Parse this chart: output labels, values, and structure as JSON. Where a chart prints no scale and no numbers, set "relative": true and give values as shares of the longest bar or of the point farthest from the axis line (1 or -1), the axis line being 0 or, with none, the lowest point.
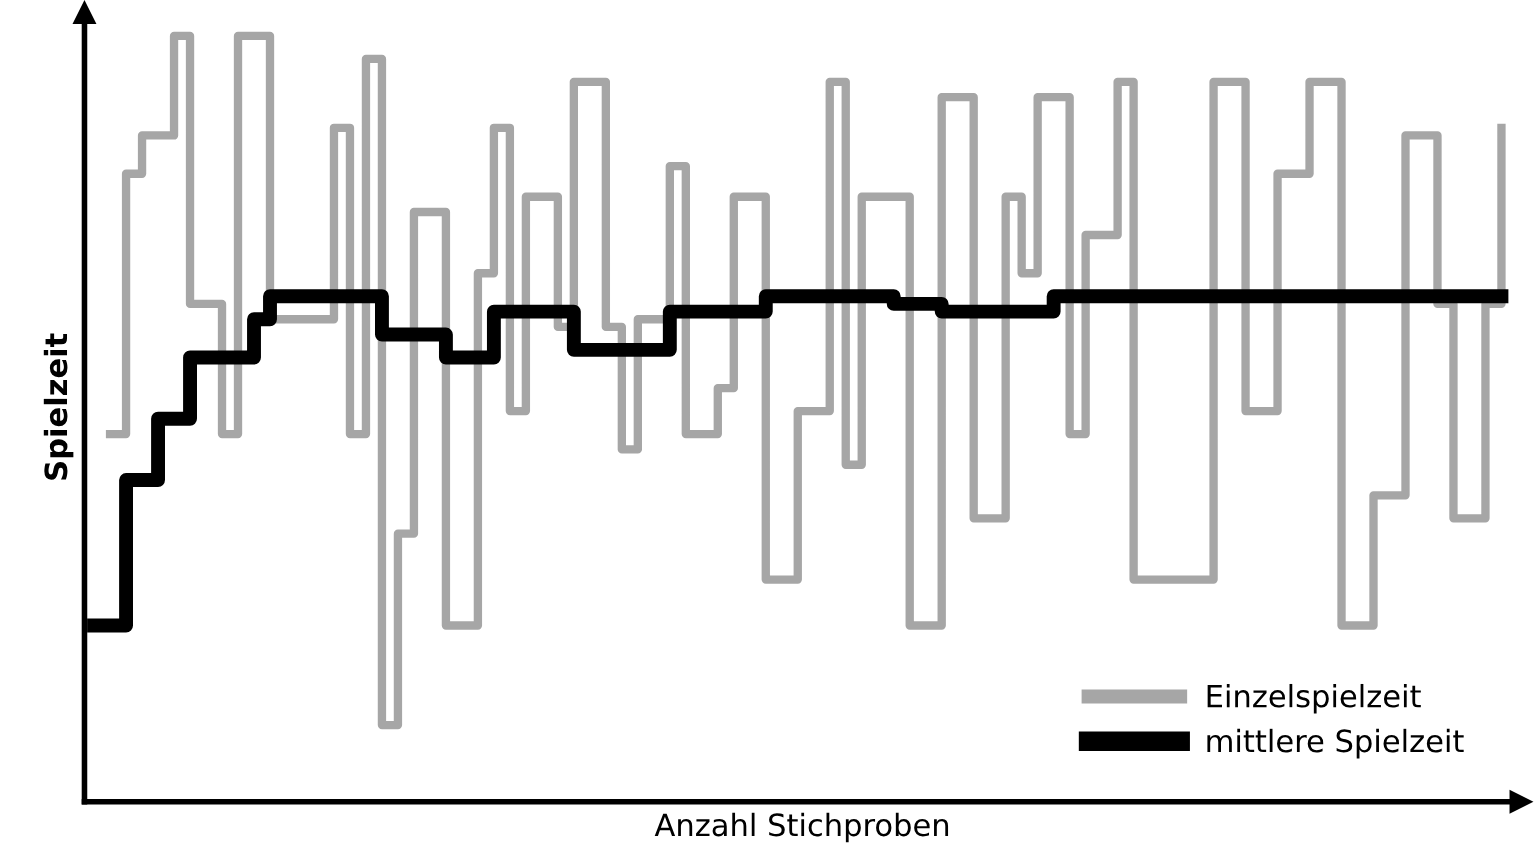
{
  "chart_data": {
    "type": "step",
    "relative": true,
    "xlabel": "Anzahl Stichproben",
    "ylabel": "Spielzeit",
    "legend": "bottom right",
    "marker": "none",
    "line_style": "solid",
    "categories": [
      null,
      null,
      null,
      null,
      null,
      null,
      null,
      null,
      null,
      null,
      null,
      null,
      null,
      null,
      null,
      null,
      null,
      null,
      null,
      null,
      null,
      null,
      null,
      null,
      null,
      null,
      null,
      null,
      null,
      null,
      null,
      null,
      null,
      null,
      null,
      null,
      null,
      null,
      null,
      null,
      null,
      null,
      null,
      null,
      null,
      null,
      null,
      null,
      null,
      null,
      null,
      null,
      null,
      null,
      null,
      null,
      null,
      null,
      null,
      null,
      null,
      null,
      null,
      null,
      null,
      null,
      null,
      null,
      null,
      null,
      null,
      null,
      null,
      null,
      null,
      null,
      null,
      null,
      null,
      null,
      null,
      null,
      null,
      null,
      null,
      null,
      null,
      null,
      null
    ],
    "series": [
      {
        "name": "Einzelspielzeit",
        "color": "#a6a6a6",
        "values": [
          null,
          0.48,
          0.82,
          0.87,
          0.87,
          1.0,
          0.65,
          0.65,
          0.48,
          1.0,
          1.0,
          0.63,
          0.63,
          0.63,
          0.63,
          0.88,
          0.48,
          0.97,
          0.1,
          0.35,
          0.77,
          0.77,
          0.23,
          0.23,
          0.69,
          0.88,
          0.51,
          0.79,
          0.79,
          0.62,
          0.94,
          0.94,
          0.62,
          0.46,
          0.63,
          0.63,
          0.83,
          0.48,
          0.48,
          0.54,
          0.79,
          0.79,
          0.29,
          0.29,
          0.51,
          0.51,
          0.94,
          0.44,
          0.79,
          0.79,
          0.79,
          0.23,
          0.23,
          0.92,
          0.92,
          0.37,
          0.37,
          0.79,
          0.69,
          0.92,
          0.92,
          0.48,
          0.74,
          0.74,
          0.94,
          0.29,
          0.29,
          0.29,
          0.29,
          0.29,
          0.94,
          0.94,
          0.51,
          0.51,
          0.82,
          0.82,
          0.94,
          0.94,
          0.23,
          0.23,
          0.4,
          0.4,
          0.87,
          0.87,
          0.65,
          0.37,
          0.37,
          0.65,
          0.88
        ]
      },
      {
        "name": "mittlere Spielzeit",
        "color": "#000000",
        "values": [
          0.23,
          0.23,
          0.42,
          0.42,
          0.5,
          0.5,
          0.58,
          0.58,
          0.58,
          0.58,
          0.63,
          0.66,
          0.66,
          0.66,
          0.66,
          0.66,
          0.66,
          0.66,
          0.61,
          0.61,
          0.61,
          0.61,
          0.58,
          0.58,
          0.58,
          0.64,
          0.64,
          0.64,
          0.64,
          0.64,
          0.59,
          0.59,
          0.59,
          0.59,
          0.59,
          0.59,
          0.64,
          0.64,
          0.64,
          0.64,
          0.64,
          0.64,
          0.66,
          0.66,
          0.66,
          0.66,
          0.66,
          0.66,
          0.66,
          0.66,
          0.65,
          0.65,
          0.65,
          0.64,
          0.64,
          0.64,
          0.64,
          0.64,
          0.64,
          0.64,
          0.66,
          0.66,
          0.66,
          0.66,
          0.66,
          0.66,
          0.66,
          0.66,
          0.66,
          0.66,
          0.66,
          0.66,
          0.66,
          0.66,
          0.66,
          0.66,
          0.66,
          0.66,
          0.66,
          0.66,
          0.66,
          0.66,
          0.66,
          0.66,
          0.66,
          0.66,
          0.66,
          0.66,
          0.66
        ]
      }
    ]
  }
}
